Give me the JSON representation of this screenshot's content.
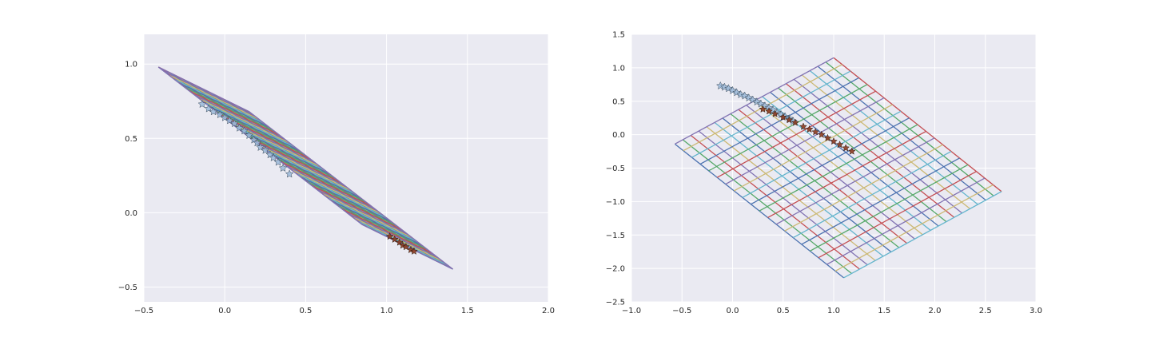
{
  "chart_data": [
    {
      "type": "line",
      "title": "",
      "xlabel": "",
      "ylabel": "",
      "xlim": [
        -0.5,
        2.0
      ],
      "ylim": [
        -0.6,
        1.2
      ],
      "xticks": [
        "−0.5",
        "0.0",
        "0.5",
        "1.0",
        "1.5",
        "2.0"
      ],
      "yticks": [
        "−0.5",
        "0.0",
        "0.5",
        "1.0"
      ],
      "grid": true,
      "series": [
        {
          "x": [
            -0.41,
            0.15,
            0.85,
            1.41
          ],
          "y": [
            0.98,
            0.68,
            -0.08,
            -0.38
          ]
        }
      ],
      "points_light": {
        "x": [
          -0.14,
          -0.1,
          -0.07,
          -0.03,
          0.0,
          0.03,
          0.06,
          0.09,
          0.12,
          0.15,
          0.18,
          0.2,
          0.22,
          0.25,
          0.28,
          0.3,
          0.33,
          0.36,
          0.4
        ],
        "y": [
          0.73,
          0.7,
          0.68,
          0.66,
          0.64,
          0.62,
          0.6,
          0.57,
          0.55,
          0.52,
          0.49,
          0.47,
          0.44,
          0.42,
          0.39,
          0.37,
          0.34,
          0.3,
          0.26
        ]
      },
      "points_dark": {
        "x": [
          1.02,
          1.05,
          1.08,
          1.1,
          1.12,
          1.15,
          1.17
        ],
        "y": [
          -0.16,
          -0.18,
          -0.2,
          -0.22,
          -0.23,
          -0.25,
          -0.26
        ]
      }
    },
    {
      "type": "line",
      "title": "",
      "xlabel": "",
      "ylabel": "",
      "xlim": [
        -1.0,
        3.0
      ],
      "ylim": [
        -2.5,
        1.5
      ],
      "xticks": [
        "−1.0",
        "−0.5",
        "0.0",
        "0.5",
        "1.0",
        "1.5",
        "2.0",
        "2.5",
        "3.0"
      ],
      "yticks": [
        "−2.5",
        "−2.0",
        "−1.5",
        "−1.0",
        "−0.5",
        "0.0",
        "0.5",
        "1.0",
        "1.5"
      ],
      "grid": true,
      "mesh": {
        "corners": {
          "left": [
            -0.57,
            -0.14
          ],
          "top": [
            1.0,
            1.15
          ],
          "right": [
            2.66,
            -0.85
          ],
          "bottom": [
            1.1,
            -2.14
          ]
        },
        "divisions": 20
      },
      "points_light": {
        "x": [
          -0.12,
          -0.08,
          -0.04,
          0.0,
          0.04,
          0.08,
          0.12,
          0.16,
          0.2,
          0.24,
          0.28,
          0.32,
          0.36,
          0.4,
          0.44,
          0.48,
          0.52,
          0.56,
          0.6
        ],
        "y": [
          0.73,
          0.71,
          0.69,
          0.66,
          0.63,
          0.6,
          0.58,
          0.55,
          0.52,
          0.49,
          0.46,
          0.43,
          0.4,
          0.37,
          0.33,
          0.3,
          0.27,
          0.24,
          0.2
        ]
      },
      "points_dark": {
        "x": [
          0.3,
          0.36,
          0.42,
          0.5,
          0.56,
          0.62,
          0.7,
          0.76,
          0.82,
          0.88,
          0.94,
          1.0,
          1.06,
          1.12,
          1.18
        ],
        "y": [
          0.38,
          0.35,
          0.31,
          0.26,
          0.22,
          0.18,
          0.12,
          0.08,
          0.04,
          0.0,
          -0.05,
          -0.1,
          -0.15,
          -0.2,
          -0.25
        ]
      }
    }
  ],
  "colors": {
    "plot_background": "#eaeaf2",
    "grid": "#ffffff",
    "tick_text": "#262626",
    "palette": [
      "#4c72b0",
      "#55a868",
      "#c44e52",
      "#8172b2",
      "#ccb974",
      "#64b5cd"
    ],
    "point_light": "#9ab8d9",
    "point_dark": "#8b3a1f"
  }
}
